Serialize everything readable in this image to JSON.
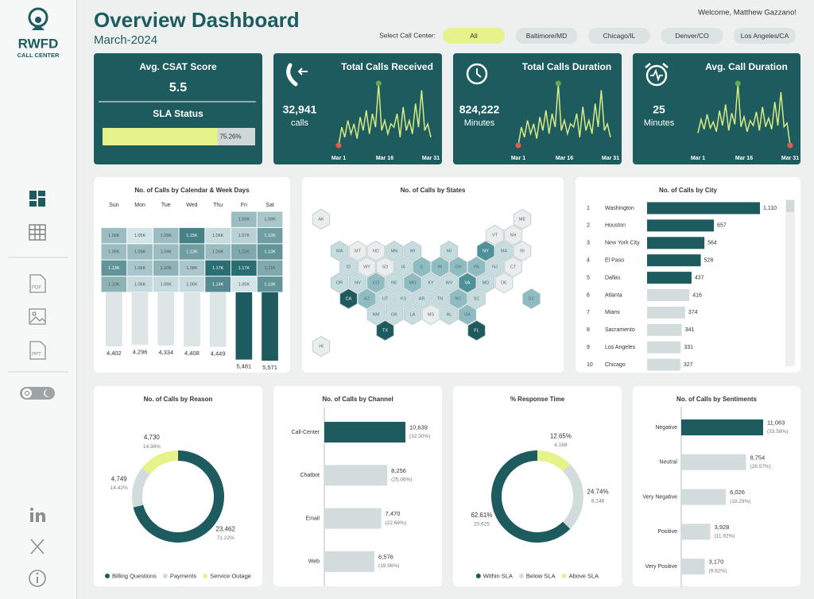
{
  "header": {
    "title": "Overview Dashboard",
    "subtitle": "March-2024",
    "welcome": "Welcome, Matthew Gazzano!",
    "filter_label": "Select Call Center:",
    "filters": [
      "All",
      "Baltimore/MD",
      "Chicago/IL",
      "Denver/CO",
      "Los Angeles/CA"
    ]
  },
  "sidebar": {
    "logo": "RWFD",
    "logo_sub": "CALL CENTER",
    "export_labels": [
      "PDF",
      "PPT"
    ]
  },
  "chart_data": [
    {
      "type": "kpi",
      "title": "Avg. CSAT Score",
      "value": 5.5,
      "sla_title": "SLA Status",
      "sla_value": 75.26,
      "sla_label": "75.26%",
      "xlim": [
        0,
        100
      ],
      "color": "#e6f28a"
    },
    {
      "type": "sparkline",
      "title": "Total Calls Received",
      "value": 32941,
      "value_label": "32,941",
      "unit": "calls",
      "categories": [
        "Mar 1",
        null,
        null,
        null,
        null,
        null,
        null,
        null,
        null,
        null,
        null,
        null,
        null,
        null,
        null,
        "Mar 16",
        null,
        null,
        null,
        null,
        null,
        null,
        null,
        null,
        null,
        null,
        null,
        null,
        null,
        null,
        "Mar 31"
      ],
      "values": [
        780,
        1050,
        900,
        1150,
        950,
        1100,
        880,
        1200,
        1000,
        1300,
        950,
        1250,
        1050,
        1700,
        1000,
        1150,
        950,
        1100,
        1050,
        1250,
        900,
        1350,
        1000,
        1150,
        950,
        1400,
        1050,
        1600,
        1000,
        1100,
        900
      ],
      "color": "#d7ea84",
      "min_color": "#e05a4e",
      "max_color": "#6aa84f"
    },
    {
      "type": "sparkline",
      "title": "Total Calls Duration",
      "value": 824222,
      "value_label": "824,222",
      "unit": "Minutes",
      "categories": [
        "Mar 1",
        null,
        null,
        null,
        null,
        null,
        null,
        null,
        null,
        null,
        null,
        null,
        null,
        null,
        null,
        "Mar 16",
        null,
        null,
        null,
        null,
        null,
        null,
        null,
        null,
        null,
        null,
        null,
        null,
        null,
        null,
        "Mar 31"
      ],
      "values": [
        19500,
        26300,
        22500,
        28800,
        23800,
        27500,
        22000,
        30000,
        25000,
        32500,
        23800,
        31300,
        26300,
        42500,
        25000,
        28800,
        23800,
        27500,
        26300,
        31300,
        22500,
        33800,
        25000,
        28800,
        23800,
        35000,
        26300,
        40000,
        25000,
        27500,
        22500
      ],
      "color": "#d7ea84",
      "min_color": "#e05a4e",
      "max_color": "#6aa84f"
    },
    {
      "type": "sparkline",
      "title": "Avg. Call Duration",
      "value": 25,
      "unit": "Minutes",
      "categories": [
        "Mar 1",
        null,
        null,
        null,
        null,
        null,
        null,
        null,
        null,
        null,
        null,
        null,
        null,
        null,
        null,
        "Mar 16",
        null,
        null,
        null,
        null,
        null,
        null,
        null,
        null,
        null,
        null,
        null,
        null,
        null,
        null,
        "Mar 31"
      ],
      "values": [
        24.5,
        25.6,
        24.8,
        26.0,
        24.9,
        25.4,
        24.6,
        26.3,
        25.1,
        26.8,
        24.7,
        26.1,
        25.2,
        28.5,
        25.0,
        25.8,
        24.6,
        25.5,
        25.1,
        26.2,
        24.7,
        26.6,
        25.0,
        25.7,
        24.8,
        27.0,
        25.1,
        27.8,
        25.0,
        25.3,
        23.5
      ],
      "color": "#d7ea84",
      "min_color": "#e05a4e",
      "max_color": "#6aa84f"
    },
    {
      "type": "heatmap",
      "title": "No. of Calls by Calendar & Week Days",
      "categories": [
        "Sun",
        "Mon",
        "Tue",
        "Wed",
        "Thu",
        "Fri",
        "Sat"
      ],
      "values": [
        [
          null,
          null,
          null,
          null,
          null,
          1090,
          1080
        ],
        [
          1090,
          1050,
          1090,
          1150,
          1060,
          1070,
          1120
        ],
        [
          1090,
          1090,
          1090,
          1120,
          1090,
          1110,
          1130
        ],
        [
          1130,
          1080,
          1100,
          1080,
          1170,
          1170,
          1110
        ],
        [
          1100,
          1060,
          1060,
          1060,
          1140,
          1050,
          1130
        ]
      ],
      "value_labels": [
        [
          null,
          null,
          null,
          null,
          null,
          "1.09K",
          "1.08K"
        ],
        [
          "1.09K",
          "1.05K",
          "1.09K",
          "1.15K",
          "1.06K",
          "1.07K",
          "1.12K"
        ],
        [
          "1.09K",
          "1.09K",
          "1.09K",
          "1.12K",
          "1.09K",
          "1.11K",
          "1.13K"
        ],
        [
          "1.13K",
          "1.08K",
          "1.10K",
          "1.08K",
          "1.17K",
          "1.17K",
          "1.11K"
        ],
        [
          "1.10K",
          "1.06K",
          "1.06K",
          "1.06K",
          "1.14K",
          "1.05K",
          "1.13K"
        ]
      ],
      "totals": [
        4402,
        4296,
        4334,
        4408,
        4449,
        5481,
        5571
      ],
      "total_labels": [
        "4,402",
        "4,296",
        "4,334",
        "4,408",
        "4,449",
        "5,481",
        "5,571"
      ],
      "bar_colors": [
        "#dde5e6",
        "#dde5e6",
        "#dde5e6",
        "#dde5e6",
        "#dde5e6",
        "#1d5b5e",
        "#1d5b5e"
      ],
      "low_color": "#d3e5e8",
      "high_color": "#2a6d72"
    },
    {
      "type": "hexmap",
      "title": "No. of Calls by States",
      "states": [
        {
          "name": "AK",
          "color": "#e9eded"
        },
        {
          "name": "ME",
          "color": "#e9eded"
        },
        {
          "name": "VT",
          "color": "#e9eded"
        },
        {
          "name": "NH",
          "color": "#e9eded"
        },
        {
          "name": "WA",
          "color": "#c6dde0"
        },
        {
          "name": "MT",
          "color": "#e9eded"
        },
        {
          "name": "ND",
          "color": "#e9eded"
        },
        {
          "name": "MN",
          "color": "#c6dde0"
        },
        {
          "name": "WI",
          "color": "#c6dde0"
        },
        {
          "name": "MI",
          "color": "#c6dde0"
        },
        {
          "name": "NY",
          "color": "#4f9199"
        },
        {
          "name": "MA",
          "color": "#c6dde0"
        },
        {
          "name": "RI",
          "color": "#e9eded"
        },
        {
          "name": "ID",
          "color": "#c6dde0"
        },
        {
          "name": "WY",
          "color": "#e9eded"
        },
        {
          "name": "SD",
          "color": "#e9eded"
        },
        {
          "name": "IA",
          "color": "#c6dde0"
        },
        {
          "name": "IL",
          "color": "#8dbdc2"
        },
        {
          "name": "IN",
          "color": "#8dbdc2"
        },
        {
          "name": "OH",
          "color": "#8dbdc2"
        },
        {
          "name": "PA",
          "color": "#8dbdc2"
        },
        {
          "name": "NJ",
          "color": "#c6dde0"
        },
        {
          "name": "CT",
          "color": "#e9eded"
        },
        {
          "name": "OR",
          "color": "#c6dde0"
        },
        {
          "name": "NV",
          "color": "#c6dde0"
        },
        {
          "name": "CO",
          "color": "#8dbdc2"
        },
        {
          "name": "NE",
          "color": "#c6dde0"
        },
        {
          "name": "MO",
          "color": "#8dbdc2"
        },
        {
          "name": "KY",
          "color": "#c6dde0"
        },
        {
          "name": "WV",
          "color": "#c6dde0"
        },
        {
          "name": "VA",
          "color": "#4f9199"
        },
        {
          "name": "MD",
          "color": "#c6dde0"
        },
        {
          "name": "DE",
          "color": "#e9eded"
        },
        {
          "name": "CA",
          "color": "#1d5b5e"
        },
        {
          "name": "AZ",
          "color": "#8dbdc2"
        },
        {
          "name": "UT",
          "color": "#c6dde0"
        },
        {
          "name": "KS",
          "color": "#c6dde0"
        },
        {
          "name": "AR",
          "color": "#c6dde0"
        },
        {
          "name": "TN",
          "color": "#c6dde0"
        },
        {
          "name": "NC",
          "color": "#8dbdc2"
        },
        {
          "name": "SC",
          "color": "#c6dde0"
        },
        {
          "name": "DC",
          "color": "#8dbdc2"
        },
        {
          "name": "NM",
          "color": "#c6dde0"
        },
        {
          "name": "OK",
          "color": "#c6dde0"
        },
        {
          "name": "LA",
          "color": "#c6dde0"
        },
        {
          "name": "MS",
          "color": "#e9eded"
        },
        {
          "name": "AL",
          "color": "#c6dde0"
        },
        {
          "name": "GA",
          "color": "#8dbdc2"
        },
        {
          "name": "TX",
          "color": "#1d5b5e"
        },
        {
          "name": "FL",
          "color": "#1d5b5e"
        },
        {
          "name": "HI",
          "color": "#e9eded"
        }
      ]
    },
    {
      "type": "hbar",
      "title": "No. of Calls by City",
      "ranks": [
        1,
        2,
        3,
        4,
        5,
        6,
        7,
        8,
        9,
        10
      ],
      "categories": [
        "Washington",
        "Houston",
        "New York City",
        "El Paso",
        "Dallas",
        "Atlanta",
        "Miami",
        "Sacramento",
        "Los Angeles",
        "Chicago"
      ],
      "values": [
        1110,
        657,
        564,
        528,
        437,
        416,
        374,
        341,
        331,
        327
      ],
      "value_labels": [
        "1,110",
        "657",
        "564",
        "528",
        "437",
        "416",
        "374",
        "341",
        "331",
        "327"
      ],
      "colors": [
        "#1d5b5e",
        "#1d5b5e",
        "#1d5b5e",
        "#1d5b5e",
        "#1d5b5e",
        "#d3dcdd",
        "#d3dcdd",
        "#d3dcdd",
        "#d3dcdd",
        "#d3dcdd"
      ]
    },
    {
      "type": "donut",
      "title": "No. of Calls by Reason",
      "direction": "clockwise",
      "percent_first": false,
      "categories": [
        "Billing Questions",
        "Payments",
        "Service Outage"
      ],
      "values": [
        23462,
        4749,
        4730
      ],
      "value_labels": [
        "23,462",
        "4,749",
        "4,730"
      ],
      "percents": [
        71.22,
        14.42,
        14.36
      ],
      "percent_labels": [
        "71.22%",
        "14.42%",
        "14.36%"
      ],
      "colors": [
        "#1d5b5e",
        "#d3dcdd",
        "#e6f28a"
      ]
    },
    {
      "type": "hbar",
      "title": "No. of Calls by Channel",
      "categories": [
        "Call-Center",
        "Chatbot",
        "Email",
        "Web"
      ],
      "values": [
        10639,
        8256,
        7470,
        6576
      ],
      "value_labels": [
        "10,639",
        "8,256",
        "7,470",
        "6,576"
      ],
      "percents": [
        32.3,
        25.06,
        22.68,
        19.96
      ],
      "percent_labels": [
        "(32.30%)",
        "(25.06%)",
        "(22.68%)",
        "(19.96%)"
      ],
      "colors": [
        "#1d5b5e",
        "#d3dcdd",
        "#d3dcdd",
        "#d3dcdd"
      ]
    },
    {
      "type": "donut",
      "title": "% Response Time",
      "direction": "counterclockwise",
      "percent_first": true,
      "categories": [
        "Within SLA",
        "Below SLA",
        "Above SLA"
      ],
      "values": [
        20625,
        8148,
        4168
      ],
      "value_labels": [
        "20,625",
        "8,148",
        "4,168"
      ],
      "percents": [
        62.61,
        24.74,
        12.65
      ],
      "percent_labels": [
        "62.61%",
        "24.74%",
        "12.65%"
      ],
      "colors": [
        "#1d5b5e",
        "#d3dcdd",
        "#e6f28a"
      ]
    },
    {
      "type": "hbar",
      "title": "No. of Calls by Sentiments",
      "categories": [
        "Negative",
        "Neutral",
        "Very Negative",
        "Positive",
        "Very Positive"
      ],
      "values": [
        11063,
        8754,
        6026,
        3928,
        3170
      ],
      "value_labels": [
        "11,063",
        "8,754",
        "6,026",
        "3,928",
        "3,170"
      ],
      "percents": [
        33.58,
        26.57,
        18.29,
        11.92,
        9.62
      ],
      "percent_labels": [
        "(33.58%)",
        "(26.57%)",
        "(18.29%)",
        "(11.92%)",
        "(9.62%)"
      ],
      "colors": [
        "#1d5b5e",
        "#d3dcdd",
        "#d3dcdd",
        "#d3dcdd",
        "#d3dcdd"
      ]
    }
  ]
}
